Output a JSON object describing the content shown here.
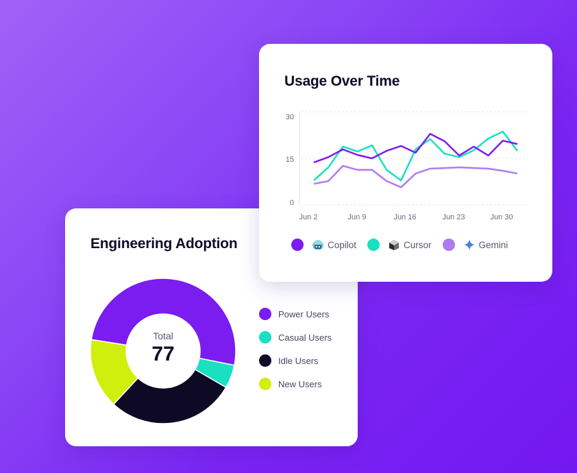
{
  "usage_card": {
    "title": "Usage Over Time",
    "y_ticks": [
      "30",
      "15",
      "0"
    ],
    "x_ticks": [
      "Jun 2",
      "Jun 9",
      "Jun 16",
      "Jun 23",
      "Jun 30"
    ],
    "legend": [
      {
        "label": "Copilot",
        "color": "#7b1cf0",
        "icon": "copilot-icon"
      },
      {
        "label": "Cursor",
        "color": "#18e0c0",
        "icon": "cursor-icon"
      },
      {
        "label": "Gemini",
        "color": "#b07af0",
        "icon": "gemini-icon"
      }
    ]
  },
  "adoption_card": {
    "title": "Engineering Adoption",
    "center_label": "Total",
    "center_value": "77",
    "legend": [
      {
        "label": "Power Users",
        "color": "#7b1cf0"
      },
      {
        "label": "Casual Users",
        "color": "#18e0c0"
      },
      {
        "label": "Idle Users",
        "color": "#0e0a26"
      },
      {
        "label": "New Users",
        "color": "#d1ef0c"
      }
    ]
  },
  "chart_data": [
    {
      "type": "line",
      "title": "Usage Over Time",
      "xlabel": "",
      "ylabel": "",
      "ylim": [
        0,
        30
      ],
      "yticks": [
        0,
        15,
        30
      ],
      "grid": true,
      "legend_position": "bottom",
      "x": [
        "Jun 2",
        "Jun 4",
        "Jun 6",
        "Jun 8",
        "Jun 10",
        "Jun 12",
        "Jun 14",
        "Jun 16",
        "Jun 18",
        "Jun 20",
        "Jun 22",
        "Jun 24",
        "Jun 26",
        "Jun 28",
        "Jun 30"
      ],
      "x_tick_labels": [
        "Jun 2",
        "Jun 9",
        "Jun 16",
        "Jun 23",
        "Jun 30"
      ],
      "series": [
        {
          "name": "Copilot",
          "color": "#7b1cf0",
          "values": [
            13.7,
            15.4,
            17.9,
            16.1,
            15.0,
            17.4,
            19.0,
            16.8,
            22.9,
            20.5,
            15.9,
            18.8,
            15.9,
            20.7,
            19.6
          ]
        },
        {
          "name": "Cursor",
          "color": "#18e0c0",
          "values": [
            7.9,
            12.1,
            18.8,
            17.2,
            19.2,
            11.3,
            7.9,
            17.9,
            21.2,
            16.5,
            15.4,
            17.6,
            21.4,
            23.6,
            17.4
          ]
        },
        {
          "name": "Gemini",
          "color": "#b07af0",
          "values": [
            6.8,
            7.7,
            12.6,
            11.3,
            11.3,
            7.7,
            5.7,
            10.1,
            11.7,
            11.9,
            12.1,
            11.9,
            11.7,
            11.0,
            10.1
          ]
        }
      ]
    },
    {
      "type": "pie",
      "donut": true,
      "title": "Engineering Adoption",
      "center_text": "Total 77",
      "legend_position": "right",
      "categories": [
        "Power Users",
        "Casual Users",
        "Idle Users",
        "New Users"
      ],
      "values": [
        39,
        4,
        22,
        12
      ],
      "colors": [
        "#7b1cf0",
        "#18e0c0",
        "#0e0a26",
        "#d1ef0c"
      ]
    }
  ]
}
